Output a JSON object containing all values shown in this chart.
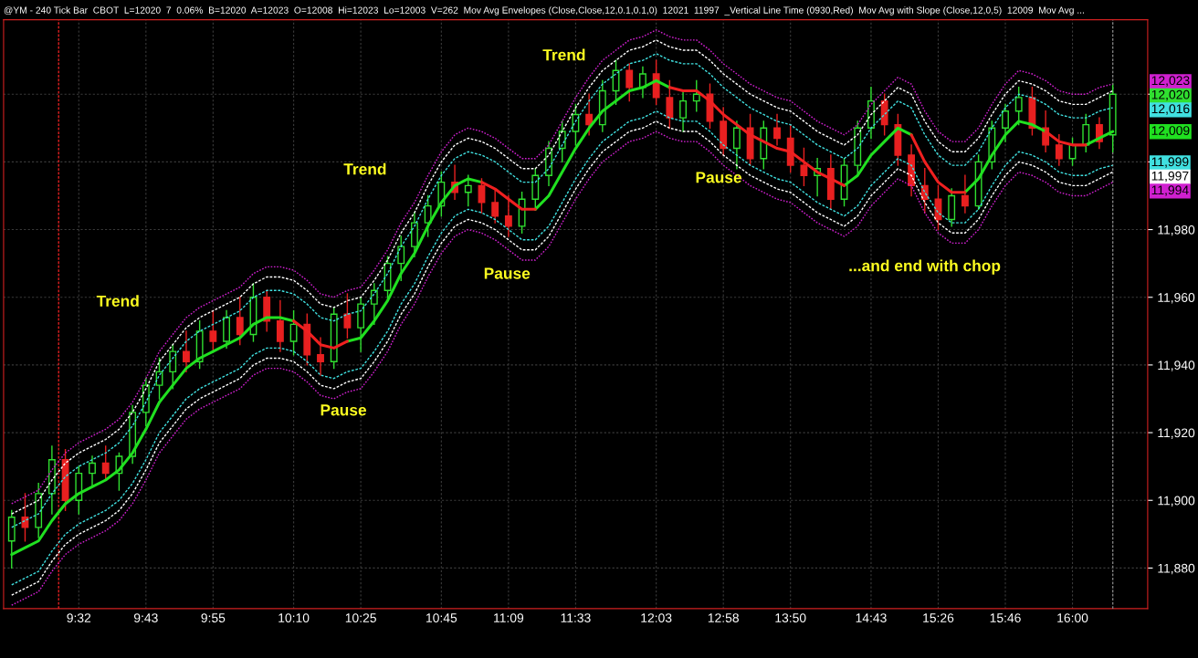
{
  "chart_data": {
    "type": "candlestick",
    "title": "@YM - 240 Tick Bar  CBOT  L=12020  7  0.06%  B=12020  A=12023  O=12008  Hi=12023  Lo=12003  V=262  Mov Avg Envelopes (Close,Close,12,0.1,0.1,0)  12021  11997  _Vertical Line Time (0930,Red)  Mov Avg with Slope (Close,12,0,5)  12009  Mov Avg ...",
    "categories": [
      null,
      null,
      null,
      null,
      null,
      "9:32",
      null,
      null,
      null,
      null,
      "9:43",
      null,
      null,
      null,
      null,
      "9:55",
      null,
      null,
      null,
      null,
      null,
      "10:10",
      null,
      null,
      null,
      null,
      "10:25",
      null,
      null,
      null,
      null,
      null,
      "10:45",
      null,
      null,
      null,
      null,
      "11:09",
      null,
      null,
      null,
      null,
      "11:33",
      null,
      null,
      null,
      null,
      null,
      "12:03",
      null,
      null,
      null,
      null,
      "12:58",
      null,
      null,
      null,
      null,
      "13:50",
      null,
      null,
      null,
      null,
      null,
      "14:43",
      null,
      null,
      null,
      null,
      "15:26",
      null,
      null,
      null,
      null,
      "15:46",
      null,
      null,
      null,
      null,
      "16:00",
      null,
      null,
      null
    ],
    "ylim": [
      11868,
      12042
    ],
    "yticks": [
      {
        "value": 11880,
        "label": "11,880"
      },
      {
        "value": 11900,
        "label": "11,900"
      },
      {
        "value": 11920,
        "label": "11,920"
      },
      {
        "value": 11940,
        "label": "11,940"
      },
      {
        "value": 11960,
        "label": "11,960"
      },
      {
        "value": 11980,
        "label": "11,980"
      },
      {
        "value": 12000,
        "label": null
      },
      {
        "value": 12020,
        "label": null
      }
    ],
    "grid": true,
    "ohlc": [
      [
        11888,
        11897,
        11880,
        11895
      ],
      [
        11895,
        11902,
        11888,
        11892
      ],
      [
        11892,
        11905,
        11889,
        11902
      ],
      [
        11902,
        11916,
        11896,
        11912
      ],
      [
        11912,
        11915,
        11897,
        11900
      ],
      [
        11900,
        11910,
        11896,
        11908
      ],
      [
        11908,
        11913,
        11904,
        11911
      ],
      [
        11911,
        11916,
        11906,
        11908
      ],
      [
        11908,
        11914,
        11903,
        11913
      ],
      [
        11913,
        11928,
        11911,
        11926
      ],
      [
        11926,
        11936,
        11922,
        11934
      ],
      [
        11934,
        11942,
        11930,
        11938
      ],
      [
        11938,
        11946,
        11933,
        11944
      ],
      [
        11944,
        11950,
        11938,
        11941
      ],
      [
        11941,
        11953,
        11939,
        11950
      ],
      [
        11950,
        11956,
        11944,
        11947
      ],
      [
        11947,
        11956,
        11945,
        11954
      ],
      [
        11954,
        11960,
        11946,
        11949
      ],
      [
        11949,
        11964,
        11947,
        11960
      ],
      [
        11960,
        11962,
        11950,
        11953
      ],
      [
        11953,
        11959,
        11944,
        11947
      ],
      [
        11947,
        11956,
        11943,
        11952
      ],
      [
        11952,
        11955,
        11940,
        11943
      ],
      [
        11943,
        11948,
        11937,
        11941
      ],
      [
        11941,
        11957,
        11939,
        11955
      ],
      [
        11955,
        11961,
        11948,
        11951
      ],
      [
        11951,
        11960,
        11944,
        11958
      ],
      [
        11958,
        11964,
        11952,
        11962
      ],
      [
        11962,
        11972,
        11959,
        11970
      ],
      [
        11970,
        11978,
        11965,
        11975
      ],
      [
        11975,
        11985,
        11972,
        11982
      ],
      [
        11982,
        11990,
        11978,
        11987
      ],
      [
        11987,
        11997,
        11984,
        11994
      ],
      [
        11994,
        11999,
        11989,
        11991
      ],
      [
        11991,
        11996,
        11987,
        11993
      ],
      [
        11993,
        11995,
        11985,
        11988
      ],
      [
        11988,
        11992,
        11982,
        11984
      ],
      [
        11984,
        11990,
        11978,
        11981
      ],
      [
        11981,
        11991,
        11979,
        11989
      ],
      [
        11989,
        11998,
        11986,
        11996
      ],
      [
        11996,
        12006,
        11993,
        12004
      ],
      [
        12004,
        12012,
        12000,
        12009
      ],
      [
        12009,
        12017,
        12005,
        12014
      ],
      [
        12014,
        12020,
        12008,
        12011
      ],
      [
        12011,
        12024,
        12009,
        12021
      ],
      [
        12021,
        12030,
        12017,
        12027
      ],
      [
        12027,
        12029,
        12018,
        12022
      ],
      [
        12022,
        12028,
        12019,
        12026
      ],
      [
        12026,
        12030,
        12017,
        12019
      ],
      [
        12019,
        12024,
        12010,
        12013
      ],
      [
        12013,
        12021,
        12009,
        12018
      ],
      [
        12018,
        12024,
        12015,
        12020
      ],
      [
        12020,
        12023,
        12010,
        12012
      ],
      [
        12012,
        12016,
        12002,
        12004
      ],
      [
        12004,
        12012,
        11998,
        12010
      ],
      [
        12010,
        12014,
        11999,
        12001
      ],
      [
        12001,
        12012,
        11998,
        12010
      ],
      [
        12010,
        12014,
        12005,
        12007
      ],
      [
        12007,
        12011,
        11997,
        11999
      ],
      [
        11999,
        12004,
        11993,
        11996
      ],
      [
        11996,
        12001,
        11990,
        11998
      ],
      [
        11998,
        12002,
        11986,
        11989
      ],
      [
        11989,
        12001,
        11987,
        11999
      ],
      [
        11999,
        12012,
        11996,
        12010
      ],
      [
        12010,
        12022,
        12007,
        12018
      ],
      [
        12018,
        12020,
        12008,
        12011
      ],
      [
        12011,
        12014,
        11999,
        12002
      ],
      [
        12002,
        12005,
        11990,
        11993
      ],
      [
        11993,
        11998,
        11985,
        11989
      ],
      [
        11989,
        11993,
        11980,
        11983
      ],
      [
        11983,
        11992,
        11981,
        11990
      ],
      [
        11990,
        11996,
        11985,
        11987
      ],
      [
        11987,
        12002,
        11986,
        12000
      ],
      [
        12000,
        12012,
        11998,
        12010
      ],
      [
        12010,
        12017,
        12006,
        12015
      ],
      [
        12015,
        12022,
        12011,
        12019
      ],
      [
        12019,
        12022,
        12008,
        12010
      ],
      [
        12010,
        12015,
        12003,
        12005
      ],
      [
        12005,
        12008,
        11999,
        12001
      ],
      [
        12001,
        12007,
        11999,
        12005
      ],
      [
        12005,
        12014,
        12003,
        12011
      ],
      [
        12011,
        12013,
        12004,
        12006
      ],
      [
        12008,
        12023,
        12003,
        12020
      ]
    ],
    "colors": [
      "#30e030",
      "#e82020",
      "#30e030",
      "#30e030",
      "#e82020",
      "#30e030",
      "#30e030",
      "#e82020",
      "#30e030",
      "#30e030",
      "#30e030",
      "#30e030",
      "#30e030",
      "#e82020",
      "#30e030",
      "#e82020",
      "#30e030",
      "#e82020",
      "#30e030",
      "#e82020",
      "#e82020",
      "#30e030",
      "#e82020",
      "#e82020",
      "#30e030",
      "#e82020",
      "#30e030",
      "#30e030",
      "#30e030",
      "#30e030",
      "#30e030",
      "#30e030",
      "#30e030",
      "#e82020",
      "#30e030",
      "#e82020",
      "#e82020",
      "#e82020",
      "#30e030",
      "#30e030",
      "#30e030",
      "#30e030",
      "#30e030",
      "#e82020",
      "#30e030",
      "#30e030",
      "#e82020",
      "#30e030",
      "#e82020",
      "#e82020",
      "#30e030",
      "#30e030",
      "#e82020",
      "#e82020",
      "#30e030",
      "#e82020",
      "#30e030",
      "#e82020",
      "#e82020",
      "#e82020",
      "#30e030",
      "#e82020",
      "#30e030",
      "#30e030",
      "#30e030",
      "#e82020",
      "#e82020",
      "#e82020",
      "#e82020",
      "#e82020",
      "#30e030",
      "#e82020",
      "#30e030",
      "#30e030",
      "#30e030",
      "#30e030",
      "#e82020",
      "#e82020",
      "#e82020",
      "#30e030",
      "#30e030",
      "#e82020",
      "#30e030"
    ],
    "series": [
      {
        "type": "line",
        "color": "#d020d0",
        "line_style": "dotted",
        "values": [
          11899,
          11901,
          11903,
          11909,
          11914,
          11917,
          11919,
          11921,
          11924,
          11929,
          11936,
          11944,
          11949,
          11954,
          11957,
          11959,
          11961,
          11963,
          11967,
          11969,
          11969,
          11968,
          11965,
          11961,
          11960,
          11962,
          11963,
          11968,
          11974,
          11982,
          11988,
          11996,
          12003,
          12008,
          12010,
          12009,
          12007,
          12004,
          12001,
          12001,
          12005,
          12012,
          12019,
          12025,
          12030,
          12033,
          12036,
          12037,
          12039,
          12037,
          12036,
          12036,
          12033,
          12029,
          12026,
          12023,
          12021,
          12019,
          12018,
          12015,
          12012,
          12010,
          12008,
          12011,
          12017,
          12021,
          12025,
          12023,
          12015,
          12009,
          12006,
          12006,
          12010,
          12017,
          12023,
          12027,
          12026,
          12024,
          12021,
          12020,
          12020,
          12022,
          12023
        ]
      },
      {
        "type": "line",
        "color": "#ffffff",
        "line_style": "dashed",
        "values": [
          11896,
          11898,
          11900,
          11906,
          11911,
          11914,
          11916,
          11918,
          11921,
          11926,
          11933,
          11941,
          11946,
          11951,
          11954,
          11956,
          11958,
          11960,
          11964,
          11966,
          11966,
          11965,
          11962,
          11958,
          11957,
          11959,
          11960,
          11965,
          11971,
          11979,
          11985,
          11993,
          12000,
          12005,
          12007,
          12006,
          12004,
          12001,
          11998,
          11998,
          12002,
          12009,
          12016,
          12022,
          12027,
          12030,
          12033,
          12034,
          12036,
          12034,
          12033,
          12033,
          12030,
          12026,
          12023,
          12020,
          12018,
          12016,
          12015,
          12012,
          12009,
          12007,
          12005,
          12008,
          12014,
          12018,
          12022,
          12020,
          12012,
          12006,
          12003,
          12003,
          12007,
          12014,
          12020,
          12024,
          12023,
          12021,
          12018,
          12017,
          12017,
          12019,
          12021
        ]
      },
      {
        "type": "line",
        "color": "#40e0e0",
        "line_style": "dashed",
        "values": [
          11892,
          11894,
          11896,
          11902,
          11907,
          11910,
          11912,
          11914,
          11917,
          11922,
          11929,
          11937,
          11942,
          11947,
          11950,
          11952,
          11954,
          11956,
          11960,
          11962,
          11962,
          11961,
          11958,
          11954,
          11953,
          11955,
          11956,
          11961,
          11967,
          11975,
          11981,
          11989,
          11996,
          12001,
          12003,
          12002,
          12000,
          11997,
          11994,
          11994,
          11998,
          12005,
          12012,
          12018,
          12023,
          12026,
          12029,
          12030,
          12032,
          12030,
          12029,
          12029,
          12026,
          12022,
          12019,
          12016,
          12014,
          12012,
          12011,
          12008,
          12005,
          12003,
          12001,
          12004,
          12010,
          12014,
          12018,
          12016,
          12008,
          12002,
          11999,
          11999,
          12003,
          12010,
          12016,
          12020,
          12019,
          12017,
          12014,
          12013,
          12013,
          12015,
          12016
        ]
      },
      {
        "type": "line",
        "color": "#40e0e0",
        "line_style": "dashed",
        "values": [
          11875,
          11877,
          11879,
          11885,
          11890,
          11893,
          11895,
          11897,
          11900,
          11905,
          11912,
          11920,
          11925,
          11930,
          11933,
          11935,
          11937,
          11939,
          11943,
          11945,
          11945,
          11944,
          11941,
          11937,
          11936,
          11938,
          11939,
          11944,
          11950,
          11958,
          11964,
          11972,
          11979,
          11984,
          11986,
          11985,
          11983,
          11980,
          11977,
          11977,
          11981,
          11988,
          11995,
          12001,
          12006,
          12009,
          12012,
          12013,
          12015,
          12013,
          12012,
          12012,
          12009,
          12005,
          12002,
          11999,
          11997,
          11995,
          11994,
          11991,
          11988,
          11986,
          11984,
          11987,
          11993,
          11997,
          12001,
          11999,
          11991,
          11985,
          11982,
          11982,
          11986,
          11993,
          11999,
          12003,
          12002,
          12000,
          11997,
          11996,
          11996,
          11998,
          11999
        ]
      },
      {
        "type": "line",
        "color": "#ffffff",
        "line_style": "dashed",
        "values": [
          11872,
          11874,
          11876,
          11882,
          11887,
          11890,
          11892,
          11894,
          11897,
          11902,
          11909,
          11917,
          11922,
          11927,
          11930,
          11932,
          11934,
          11936,
          11940,
          11942,
          11942,
          11941,
          11938,
          11934,
          11933,
          11935,
          11936,
          11941,
          11947,
          11955,
          11961,
          11969,
          11976,
          11981,
          11983,
          11982,
          11980,
          11977,
          11974,
          11974,
          11978,
          11985,
          11992,
          11998,
          12003,
          12006,
          12009,
          12010,
          12012,
          12010,
          12009,
          12009,
          12006,
          12002,
          11999,
          11996,
          11994,
          11992,
          11991,
          11988,
          11985,
          11983,
          11981,
          11984,
          11990,
          11994,
          11998,
          11996,
          11988,
          11982,
          11979,
          11979,
          11983,
          11990,
          11996,
          12000,
          11999,
          11997,
          11994,
          11993,
          11993,
          11995,
          11997
        ]
      },
      {
        "type": "line",
        "color": "#d020d0",
        "line_style": "dotted",
        "values": [
          11869,
          11871,
          11873,
          11879,
          11884,
          11887,
          11889,
          11891,
          11894,
          11899,
          11906,
          11914,
          11919,
          11924,
          11927,
          11929,
          11931,
          11933,
          11937,
          11939,
          11939,
          11938,
          11935,
          11931,
          11930,
          11932,
          11933,
          11938,
          11944,
          11952,
          11958,
          11966,
          11973,
          11978,
          11980,
          11979,
          11977,
          11974,
          11971,
          11971,
          11975,
          11982,
          11989,
          11995,
          12000,
          12003,
          12006,
          12007,
          12009,
          12007,
          12006,
          12006,
          12003,
          11999,
          11996,
          11993,
          11991,
          11989,
          11988,
          11985,
          11982,
          11980,
          11978,
          11981,
          11987,
          11991,
          11995,
          11993,
          11985,
          11979,
          11976,
          11976,
          11980,
          11987,
          11993,
          11997,
          11996,
          11994,
          11991,
          11990,
          11990,
          11992,
          11994
        ]
      },
      {
        "type": "line",
        "color": "#20e020",
        "line_style": "solid",
        "values": [
          11884,
          11886,
          11888,
          11894,
          11899,
          11902,
          11904,
          11906,
          11909,
          11914,
          11921,
          11929,
          11934,
          11939,
          11942,
          11944,
          11946,
          11948,
          11952,
          11954,
          11954,
          11953,
          null,
          null,
          null,
          11947,
          11948,
          11953,
          11959,
          11967,
          11973,
          11981,
          11988,
          11993,
          11995,
          11994,
          null,
          null,
          null,
          11986,
          11990,
          11997,
          12004,
          12010,
          12015,
          12018,
          12021,
          12022,
          12024,
          12022,
          null,
          null,
          null,
          null,
          null,
          null,
          null,
          null,
          null,
          null,
          null,
          null,
          11993,
          11996,
          12002,
          12006,
          12010,
          12008,
          null,
          null,
          null,
          11991,
          11995,
          12002,
          12008,
          12012,
          12011,
          12009,
          null,
          null,
          12005,
          12007,
          12009
        ]
      },
      {
        "type": "line",
        "color": "#f02020",
        "line_style": "solid",
        "values": [
          null,
          null,
          null,
          null,
          null,
          null,
          null,
          null,
          null,
          null,
          null,
          null,
          null,
          null,
          null,
          null,
          null,
          null,
          null,
          null,
          null,
          11953,
          11950,
          11946,
          11945,
          11947,
          null,
          null,
          null,
          null,
          null,
          null,
          null,
          null,
          null,
          11994,
          11992,
          11989,
          11986,
          11986,
          null,
          null,
          null,
          null,
          null,
          null,
          null,
          null,
          null,
          12022,
          12021,
          12021,
          12018,
          12014,
          12011,
          12008,
          12006,
          12004,
          12003,
          12000,
          11997,
          11995,
          11993,
          null,
          null,
          null,
          null,
          12008,
          12000,
          11994,
          11991,
          11991,
          null,
          null,
          null,
          null,
          null,
          12009,
          12006,
          12005,
          12005,
          null,
          null
        ]
      }
    ],
    "annotations": [
      "Trend",
      "Trend",
      "Trend",
      "Pause",
      "Pause",
      "Pause",
      "...and end with chop",
      "12,023",
      "12,020",
      "12,016",
      "12,009",
      "11,999",
      "11,997",
      "11,994"
    ]
  }
}
